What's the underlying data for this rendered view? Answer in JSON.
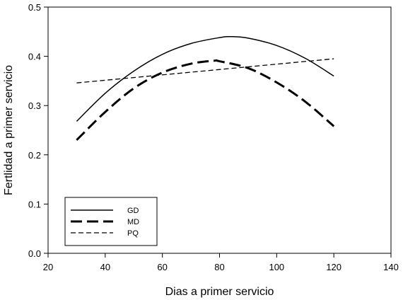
{
  "chart_data": {
    "type": "line",
    "title": "",
    "xlabel": "Dias a primer servicio",
    "ylabel": "Fertlidad a primer servicio",
    "xlim": [
      20,
      140
    ],
    "ylim": [
      0.0,
      0.5
    ],
    "x_ticks": [
      "20",
      "40",
      "60",
      "80",
      "100",
      "120",
      "140"
    ],
    "y_ticks": [
      "0.0",
      "0.1",
      "0.2",
      "0.3",
      "0.4",
      "0.5"
    ],
    "grid": false,
    "legend_position": "bottom-left",
    "series": [
      {
        "name": "GD",
        "style": "solid",
        "color": "#000000",
        "x": [
          30,
          40,
          50,
          60,
          70,
          80,
          84,
          90,
          100,
          110,
          120
        ],
        "y": [
          0.268,
          0.325,
          0.37,
          0.404,
          0.426,
          0.438,
          0.44,
          0.437,
          0.422,
          0.396,
          0.36
        ]
      },
      {
        "name": "MD",
        "style": "long-dash",
        "color": "#000000",
        "x": [
          30,
          40,
          50,
          60,
          70,
          78,
          80,
          90,
          100,
          110,
          120
        ],
        "y": [
          0.23,
          0.287,
          0.335,
          0.367,
          0.385,
          0.391,
          0.39,
          0.376,
          0.347,
          0.308,
          0.258
        ]
      },
      {
        "name": "PQ",
        "style": "short-dash",
        "color": "#000000",
        "x": [
          30,
          120
        ],
        "y": [
          0.346,
          0.395
        ]
      }
    ]
  }
}
